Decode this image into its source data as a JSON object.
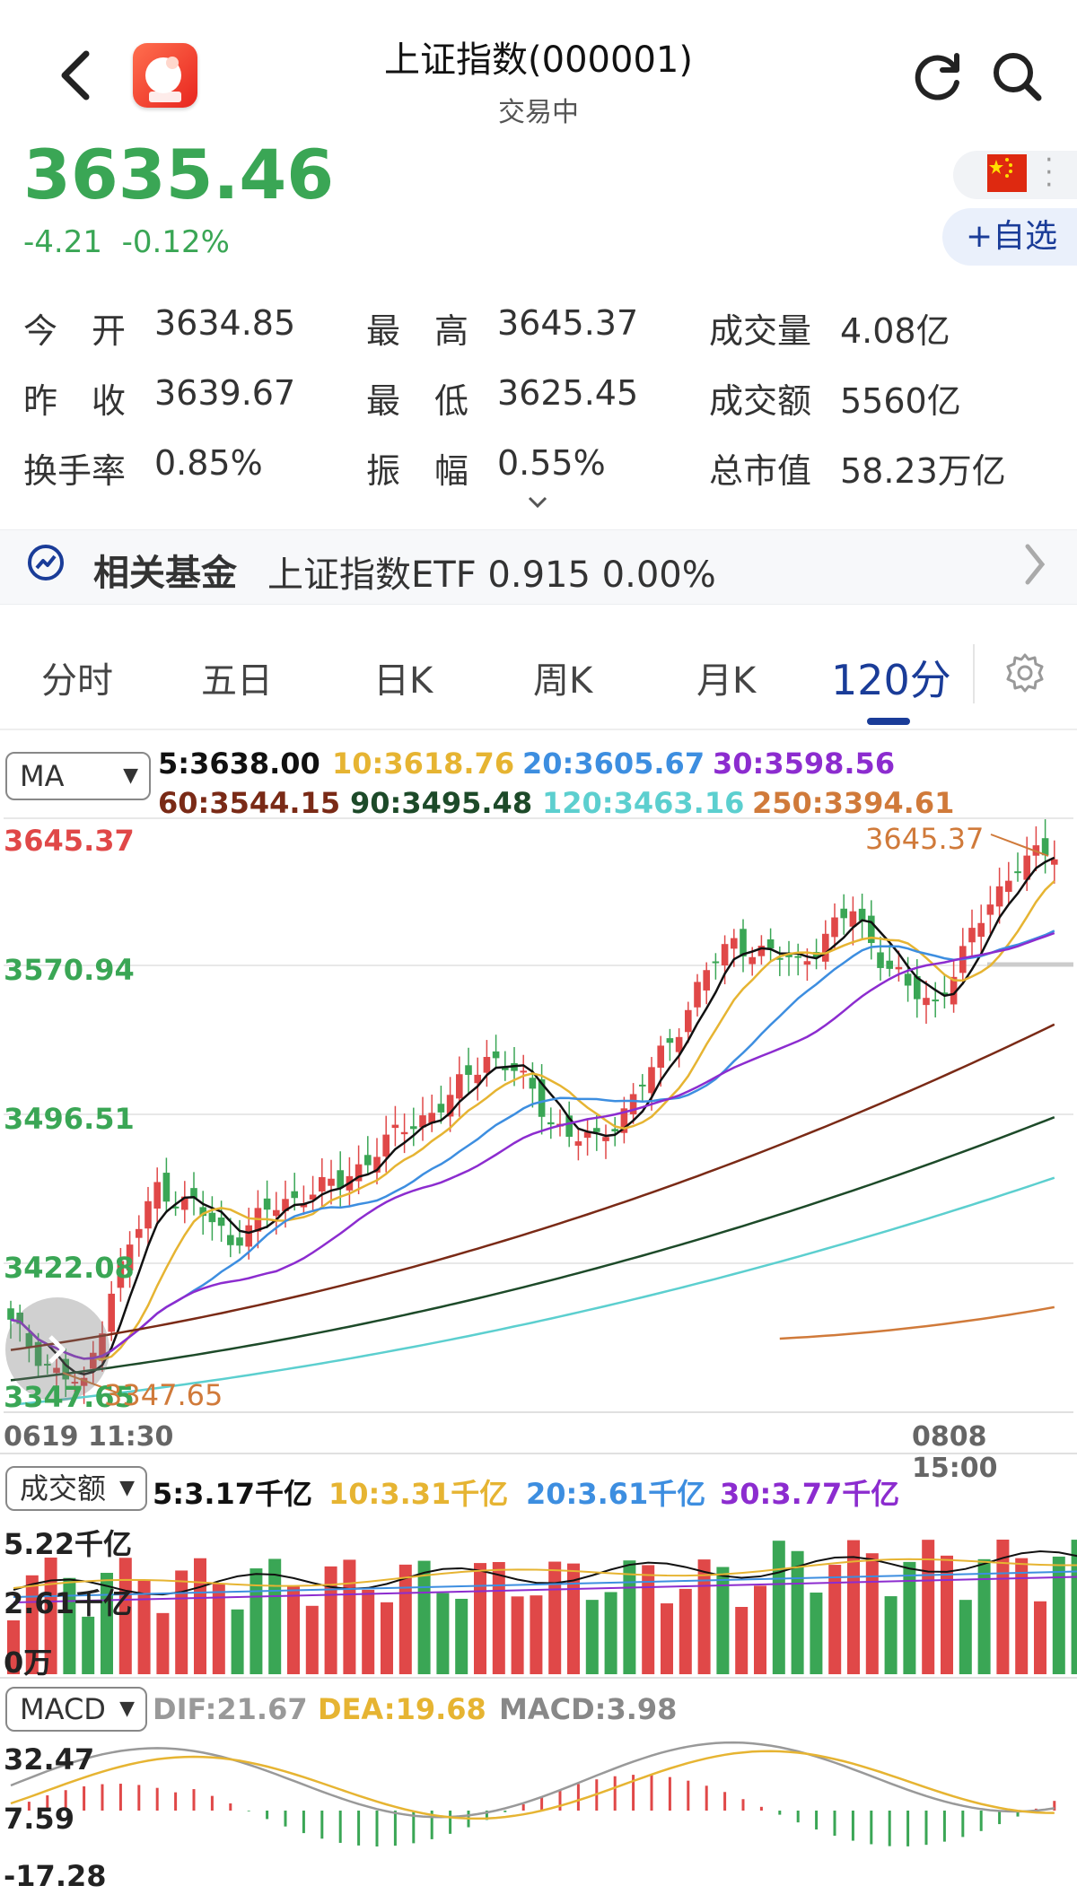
{
  "header": {
    "title": "上证指数(000001)",
    "status": "交易中"
  },
  "quote": {
    "price": "3635.46",
    "change": "-4.21",
    "change_pct": "-0.12%",
    "favorite_label": "+自选"
  },
  "stats": [
    {
      "label": "今　开",
      "value": "3634.85"
    },
    {
      "label": "最　高",
      "value": "3645.37"
    },
    {
      "label": "成交量",
      "value": "4.08亿"
    },
    {
      "label": "昨　收",
      "value": "3639.67"
    },
    {
      "label": "最　低",
      "value": "3625.45"
    },
    {
      "label": "成交额",
      "value": "5560亿"
    },
    {
      "label": "换手率",
      "value": "0.85%"
    },
    {
      "label": "振　幅",
      "value": "0.55%"
    },
    {
      "label": "总市值",
      "value": "58.23万亿"
    }
  ],
  "fund": {
    "title": "相关基金",
    "name": "上证指数ETF 0.915 0.00%"
  },
  "tabs": [
    "分时",
    "五日",
    "日K",
    "周K",
    "月K",
    "120分"
  ],
  "active_tab": "120分",
  "colors": {
    "up": "#e04848",
    "down": "#3aa655",
    "accent": "#1a3c98"
  },
  "kline": {
    "indicator": "MA",
    "ma_legend": [
      {
        "label": "5:3638.00",
        "color": "#111111"
      },
      {
        "label": "10:3618.76",
        "color": "#e6b432"
      },
      {
        "label": "20:3605.67",
        "color": "#3d8ee0"
      },
      {
        "label": "30:3598.56",
        "color": "#8c2ccf"
      },
      {
        "label": "60:3544.15",
        "color": "#7a2a16"
      },
      {
        "label": "90:3495.48",
        "color": "#1d4a29"
      },
      {
        "label": "120:3463.16",
        "color": "#5ccfcf"
      },
      {
        "label": "250:3394.61",
        "color": "#d07a3a"
      }
    ],
    "y_labels": [
      "3645.37",
      "3570.94",
      "3496.51",
      "3422.08",
      "3347.65"
    ],
    "high_marker": "3645.37",
    "low_marker": "3347.65",
    "time_start": "0619 11:30",
    "time_end": "0808 15:00"
  },
  "volume": {
    "indicator": "成交额",
    "ma_legend": [
      {
        "label": "5:3.17千亿",
        "color": "#111111"
      },
      {
        "label": "10:3.31千亿",
        "color": "#e6b432"
      },
      {
        "label": "20:3.61千亿",
        "color": "#3d8ee0"
      },
      {
        "label": "30:3.77千亿",
        "color": "#8c2ccf"
      }
    ],
    "y_labels": [
      "5.22千亿",
      "2.61千亿",
      "0万"
    ]
  },
  "macd": {
    "indicator": "MACD",
    "legend": [
      {
        "label": "DIF:21.67",
        "color": "#999999"
      },
      {
        "label": "DEA:19.68",
        "color": "#e6b432"
      },
      {
        "label": "MACD:3.98",
        "color": "#888888"
      }
    ],
    "y_labels": [
      "32.47",
      "7.59",
      "-17.28"
    ]
  }
}
